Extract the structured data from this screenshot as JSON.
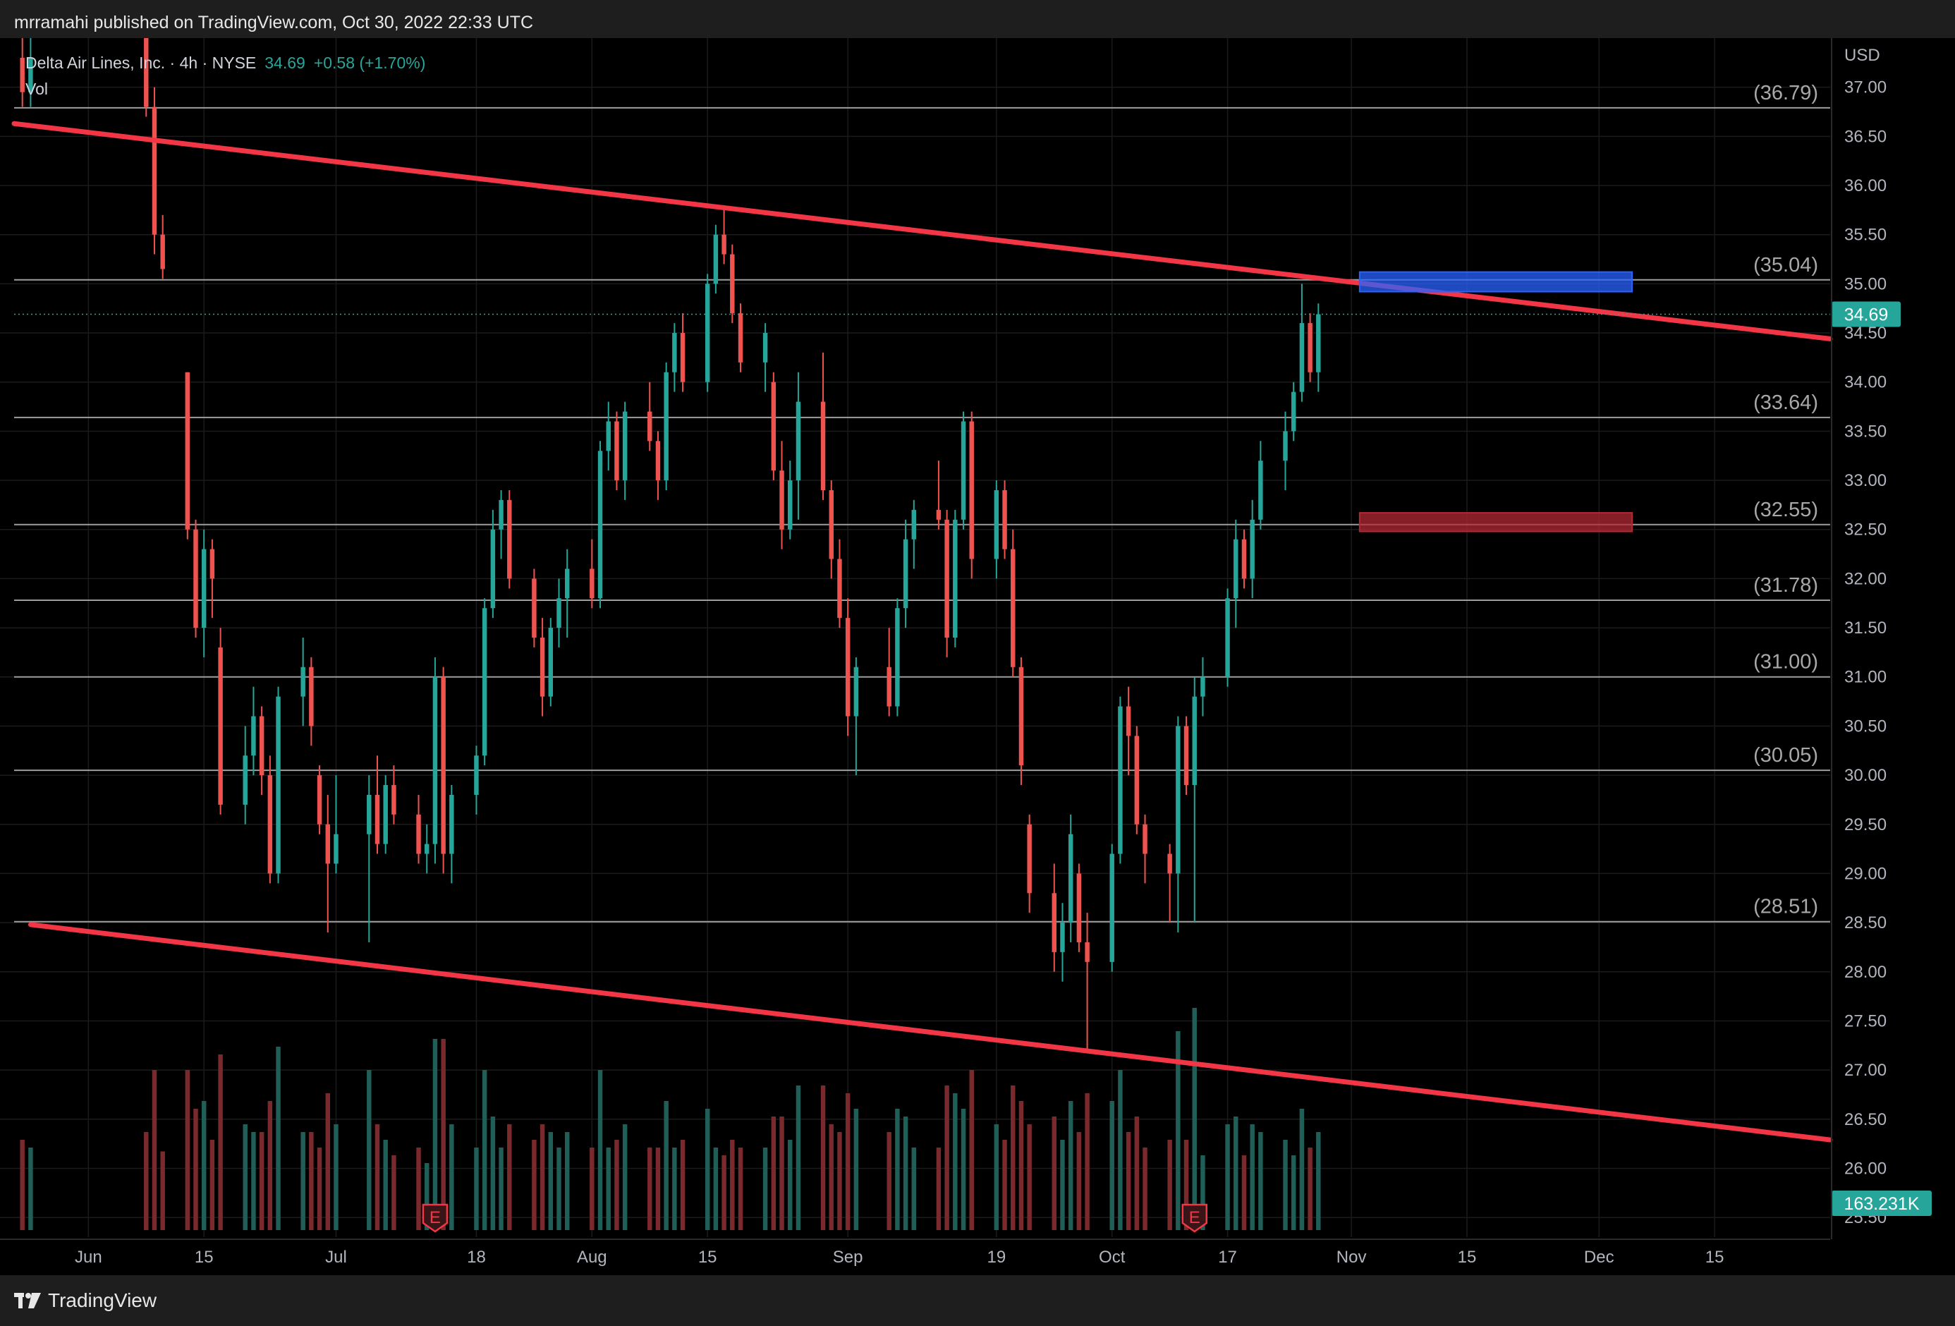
{
  "header": {
    "publish_line": "mrramahi published on TradingView.com, Oct 30, 2022 22:33 UTC"
  },
  "legend": {
    "symbol": "Delta Air Lines, Inc. · 4h · NYSE",
    "last": "34.69",
    "change": "+0.58 (+1.70%)",
    "volume_label": "Vol"
  },
  "footer": {
    "brand": "TradingView"
  },
  "colors": {
    "background": "#000000",
    "up": "#26a69a",
    "down": "#ef5350",
    "trendline": "#f23645",
    "level_line": "#9e9e9e",
    "blue_zone": "#2962ff",
    "red_zone": "#b22833"
  },
  "chart_data": {
    "type": "candlestick",
    "currency_label": "USD",
    "ylim": [
      25.3,
      37.5
    ],
    "y_ticks": [
      "37.00",
      "36.50",
      "36.00",
      "35.50",
      "35.00",
      "34.50",
      "34.00",
      "33.50",
      "33.00",
      "32.50",
      "32.00",
      "31.50",
      "31.00",
      "30.50",
      "30.00",
      "29.50",
      "29.00",
      "28.50",
      "28.00",
      "27.50",
      "27.00",
      "26.50",
      "26.00",
      "25.50"
    ],
    "x_ticks": [
      {
        "label": "Jun",
        "date": "2022-06-01"
      },
      {
        "label": "15",
        "date": "2022-06-15"
      },
      {
        "label": "Jul",
        "date": "2022-07-01"
      },
      {
        "label": "18",
        "date": "2022-07-18"
      },
      {
        "label": "Aug",
        "date": "2022-08-01"
      },
      {
        "label": "15",
        "date": "2022-08-15"
      },
      {
        "label": "Sep",
        "date": "2022-09-01"
      },
      {
        "label": "19",
        "date": "2022-09-19"
      },
      {
        "label": "Oct",
        "date": "2022-10-03"
      },
      {
        "label": "17",
        "date": "2022-10-17"
      },
      {
        "label": "Nov",
        "date": "2022-11-01"
      },
      {
        "label": "15",
        "date": "2022-11-15"
      },
      {
        "label": "Dec",
        "date": "2022-12-01"
      },
      {
        "label": "15",
        "date": "2022-12-15"
      }
    ],
    "x_range": [
      "2022-05-23",
      "2022-12-29"
    ],
    "horizontal_levels": [
      {
        "label": "(36.79)",
        "value": 36.79
      },
      {
        "label": "(35.04)",
        "value": 35.04
      },
      {
        "label": "(33.64)",
        "value": 33.64
      },
      {
        "label": "(32.55)",
        "value": 32.55
      },
      {
        "label": "(31.78)",
        "value": 31.78
      },
      {
        "label": "(31.00)",
        "value": 31.0
      },
      {
        "label": "(30.05)",
        "value": 30.05
      },
      {
        "label": "(28.51)",
        "value": 28.51
      }
    ],
    "trendlines": [
      {
        "from": {
          "date": "2022-05-23",
          "value": 36.63
        },
        "to": {
          "date": "2022-12-29",
          "value": 34.44
        }
      },
      {
        "from": {
          "date": "2022-05-25",
          "value": 28.48
        },
        "to": {
          "date": "2022-12-29",
          "value": 26.29
        }
      }
    ],
    "zones": [
      {
        "color": "blue",
        "from": "2022-11-02",
        "to": "2022-12-05",
        "low": 34.92,
        "high": 35.12
      },
      {
        "color": "red",
        "from": "2022-11-02",
        "to": "2022-12-05",
        "low": 32.48,
        "high": 32.67
      }
    ],
    "last_price": {
      "value": 34.69,
      "label": "34.69"
    },
    "volume_badge": "163.231K",
    "earnings_markers": [
      {
        "date": "2022-07-13",
        "label": "E"
      },
      {
        "date": "2022-10-13",
        "label": "E"
      }
    ],
    "candles": [
      {
        "d": "2022-05-24",
        "o": 37.3,
        "h": 37.6,
        "l": 36.8,
        "c": 36.95
      },
      {
        "d": "2022-05-25",
        "o": 36.95,
        "h": 37.5,
        "l": 36.8,
        "c": 37.3
      },
      {
        "d": "2022-06-08",
        "o": 37.5,
        "h": 37.6,
        "l": 36.7,
        "c": 36.8
      },
      {
        "d": "2022-06-09",
        "o": 36.8,
        "h": 37.0,
        "l": 35.3,
        "c": 35.5
      },
      {
        "d": "2022-06-10",
        "o": 35.5,
        "h": 35.7,
        "l": 35.05,
        "c": 35.15
      },
      {
        "d": "2022-06-13",
        "o": 34.1,
        "h": 34.1,
        "l": 32.4,
        "c": 32.5
      },
      {
        "d": "2022-06-14",
        "o": 32.5,
        "h": 32.6,
        "l": 31.4,
        "c": 31.5
      },
      {
        "d": "2022-06-15",
        "o": 31.5,
        "h": 32.5,
        "l": 31.2,
        "c": 32.3
      },
      {
        "d": "2022-06-16",
        "o": 32.3,
        "h": 32.4,
        "l": 31.6,
        "c": 32.0
      },
      {
        "d": "2022-06-17",
        "o": 31.3,
        "h": 31.5,
        "l": 29.6,
        "c": 29.7
      },
      {
        "d": "2022-06-20",
        "o": 29.7,
        "h": 30.5,
        "l": 29.5,
        "c": 30.2
      },
      {
        "d": "2022-06-21",
        "o": 30.2,
        "h": 30.9,
        "l": 30.0,
        "c": 30.6
      },
      {
        "d": "2022-06-22",
        "o": 30.6,
        "h": 30.7,
        "l": 29.8,
        "c": 30.0
      },
      {
        "d": "2022-06-23",
        "o": 30.0,
        "h": 30.2,
        "l": 28.9,
        "c": 29.0
      },
      {
        "d": "2022-06-24",
        "o": 29.0,
        "h": 30.9,
        "l": 28.9,
        "c": 30.8
      },
      {
        "d": "2022-06-27",
        "o": 30.8,
        "h": 31.4,
        "l": 30.5,
        "c": 31.1
      },
      {
        "d": "2022-06-28",
        "o": 31.1,
        "h": 31.2,
        "l": 30.3,
        "c": 30.5
      },
      {
        "d": "2022-06-29",
        "o": 30.0,
        "h": 30.1,
        "l": 29.4,
        "c": 29.5
      },
      {
        "d": "2022-06-30",
        "o": 29.5,
        "h": 29.8,
        "l": 28.4,
        "c": 29.1
      },
      {
        "d": "2022-07-01",
        "o": 29.1,
        "h": 30.0,
        "l": 29.0,
        "c": 29.4
      },
      {
        "d": "2022-07-05",
        "o": 29.4,
        "h": 30.0,
        "l": 28.3,
        "c": 29.8
      },
      {
        "d": "2022-07-06",
        "o": 29.8,
        "h": 30.2,
        "l": 29.2,
        "c": 29.3
      },
      {
        "d": "2022-07-07",
        "o": 29.3,
        "h": 30.0,
        "l": 29.2,
        "c": 29.9
      },
      {
        "d": "2022-07-08",
        "o": 29.9,
        "h": 30.1,
        "l": 29.5,
        "c": 29.6
      },
      {
        "d": "2022-07-11",
        "o": 29.6,
        "h": 29.8,
        "l": 29.1,
        "c": 29.2
      },
      {
        "d": "2022-07-12",
        "o": 29.2,
        "h": 29.5,
        "l": 29.0,
        "c": 29.3
      },
      {
        "d": "2022-07-13",
        "o": 29.3,
        "h": 31.2,
        "l": 29.1,
        "c": 31.0
      },
      {
        "d": "2022-07-14",
        "o": 31.0,
        "h": 31.1,
        "l": 29.0,
        "c": 29.2
      },
      {
        "d": "2022-07-15",
        "o": 29.2,
        "h": 29.9,
        "l": 28.9,
        "c": 29.8
      },
      {
        "d": "2022-07-18",
        "o": 29.8,
        "h": 30.3,
        "l": 29.6,
        "c": 30.2
      },
      {
        "d": "2022-07-19",
        "o": 30.2,
        "h": 31.8,
        "l": 30.1,
        "c": 31.7
      },
      {
        "d": "2022-07-20",
        "o": 31.7,
        "h": 32.7,
        "l": 31.6,
        "c": 32.5
      },
      {
        "d": "2022-07-21",
        "o": 32.5,
        "h": 32.9,
        "l": 32.2,
        "c": 32.8
      },
      {
        "d": "2022-07-22",
        "o": 32.8,
        "h": 32.9,
        "l": 31.9,
        "c": 32.0
      },
      {
        "d": "2022-07-25",
        "o": 32.0,
        "h": 32.1,
        "l": 31.3,
        "c": 31.4
      },
      {
        "d": "2022-07-26",
        "o": 31.4,
        "h": 31.6,
        "l": 30.6,
        "c": 30.8
      },
      {
        "d": "2022-07-27",
        "o": 30.8,
        "h": 31.6,
        "l": 30.7,
        "c": 31.5
      },
      {
        "d": "2022-07-28",
        "o": 31.5,
        "h": 32.0,
        "l": 31.3,
        "c": 31.8
      },
      {
        "d": "2022-07-29",
        "o": 31.8,
        "h": 32.3,
        "l": 31.4,
        "c": 32.1
      },
      {
        "d": "2022-08-01",
        "o": 32.1,
        "h": 32.4,
        "l": 31.7,
        "c": 31.8
      },
      {
        "d": "2022-08-02",
        "o": 31.8,
        "h": 33.4,
        "l": 31.7,
        "c": 33.3
      },
      {
        "d": "2022-08-03",
        "o": 33.3,
        "h": 33.8,
        "l": 33.1,
        "c": 33.6
      },
      {
        "d": "2022-08-04",
        "o": 33.6,
        "h": 33.7,
        "l": 32.9,
        "c": 33.0
      },
      {
        "d": "2022-08-05",
        "o": 33.0,
        "h": 33.8,
        "l": 32.8,
        "c": 33.7
      },
      {
        "d": "2022-08-08",
        "o": 33.7,
        "h": 34.0,
        "l": 33.3,
        "c": 33.4
      },
      {
        "d": "2022-08-09",
        "o": 33.4,
        "h": 33.5,
        "l": 32.8,
        "c": 33.0
      },
      {
        "d": "2022-08-10",
        "o": 33.0,
        "h": 34.2,
        "l": 32.9,
        "c": 34.1
      },
      {
        "d": "2022-08-11",
        "o": 34.1,
        "h": 34.6,
        "l": 33.9,
        "c": 34.5
      },
      {
        "d": "2022-08-12",
        "o": 34.5,
        "h": 34.7,
        "l": 33.9,
        "c": 34.0
      },
      {
        "d": "2022-08-15",
        "o": 34.0,
        "h": 35.1,
        "l": 33.9,
        "c": 35.0
      },
      {
        "d": "2022-08-16",
        "o": 35.0,
        "h": 35.6,
        "l": 34.9,
        "c": 35.5
      },
      {
        "d": "2022-08-17",
        "o": 35.5,
        "h": 35.8,
        "l": 35.2,
        "c": 35.3
      },
      {
        "d": "2022-08-18",
        "o": 35.3,
        "h": 35.4,
        "l": 34.6,
        "c": 34.7
      },
      {
        "d": "2022-08-19",
        "o": 34.7,
        "h": 34.8,
        "l": 34.1,
        "c": 34.2
      },
      {
        "d": "2022-08-22",
        "o": 34.2,
        "h": 34.6,
        "l": 33.9,
        "c": 34.5
      },
      {
        "d": "2022-08-23",
        "o": 34.0,
        "h": 34.1,
        "l": 33.0,
        "c": 33.1
      },
      {
        "d": "2022-08-24",
        "o": 33.1,
        "h": 33.4,
        "l": 32.3,
        "c": 32.5
      },
      {
        "d": "2022-08-25",
        "o": 32.5,
        "h": 33.2,
        "l": 32.4,
        "c": 33.0
      },
      {
        "d": "2022-08-26",
        "o": 33.0,
        "h": 34.1,
        "l": 32.6,
        "c": 33.8
      },
      {
        "d": "2022-08-29",
        "o": 33.8,
        "h": 34.3,
        "l": 32.8,
        "c": 32.9
      },
      {
        "d": "2022-08-30",
        "o": 32.9,
        "h": 33.0,
        "l": 32.0,
        "c": 32.2
      },
      {
        "d": "2022-08-31",
        "o": 32.2,
        "h": 32.4,
        "l": 31.5,
        "c": 31.6
      },
      {
        "d": "2022-09-01",
        "o": 31.6,
        "h": 31.8,
        "l": 30.4,
        "c": 30.6
      },
      {
        "d": "2022-09-02",
        "o": 30.6,
        "h": 31.2,
        "l": 30.0,
        "c": 31.1
      },
      {
        "d": "2022-09-06",
        "o": 31.1,
        "h": 31.5,
        "l": 30.6,
        "c": 30.7
      },
      {
        "d": "2022-09-07",
        "o": 30.7,
        "h": 31.8,
        "l": 30.6,
        "c": 31.7
      },
      {
        "d": "2022-09-08",
        "o": 31.7,
        "h": 32.6,
        "l": 31.5,
        "c": 32.4
      },
      {
        "d": "2022-09-09",
        "o": 32.4,
        "h": 32.8,
        "l": 32.1,
        "c": 32.7
      },
      {
        "d": "2022-09-12",
        "o": 32.7,
        "h": 33.2,
        "l": 32.5,
        "c": 32.6
      },
      {
        "d": "2022-09-13",
        "o": 32.6,
        "h": 32.7,
        "l": 31.2,
        "c": 31.4
      },
      {
        "d": "2022-09-14",
        "o": 31.4,
        "h": 32.7,
        "l": 31.3,
        "c": 32.6
      },
      {
        "d": "2022-09-15",
        "o": 32.6,
        "h": 33.7,
        "l": 32.5,
        "c": 33.6
      },
      {
        "d": "2022-09-16",
        "o": 33.6,
        "h": 33.7,
        "l": 32.0,
        "c": 32.2
      },
      {
        "d": "2022-09-19",
        "o": 32.2,
        "h": 33.0,
        "l": 32.0,
        "c": 32.9
      },
      {
        "d": "2022-09-20",
        "o": 32.9,
        "h": 33.0,
        "l": 32.2,
        "c": 32.3
      },
      {
        "d": "2022-09-21",
        "o": 32.3,
        "h": 32.5,
        "l": 31.0,
        "c": 31.1
      },
      {
        "d": "2022-09-22",
        "o": 31.1,
        "h": 31.2,
        "l": 29.9,
        "c": 30.1
      },
      {
        "d": "2022-09-23",
        "o": 29.5,
        "h": 29.6,
        "l": 28.6,
        "c": 28.8
      },
      {
        "d": "2022-09-26",
        "o": 28.8,
        "h": 29.1,
        "l": 28.0,
        "c": 28.2
      },
      {
        "d": "2022-09-27",
        "o": 28.2,
        "h": 28.7,
        "l": 27.9,
        "c": 28.5
      },
      {
        "d": "2022-09-28",
        "o": 28.5,
        "h": 29.6,
        "l": 28.3,
        "c": 29.4
      },
      {
        "d": "2022-09-29",
        "o": 29.0,
        "h": 29.1,
        "l": 28.2,
        "c": 28.3
      },
      {
        "d": "2022-09-30",
        "o": 28.3,
        "h": 28.6,
        "l": 27.2,
        "c": 28.1
      },
      {
        "d": "2022-10-03",
        "o": 28.1,
        "h": 29.3,
        "l": 28.0,
        "c": 29.2
      },
      {
        "d": "2022-10-04",
        "o": 29.2,
        "h": 30.8,
        "l": 29.1,
        "c": 30.7
      },
      {
        "d": "2022-10-05",
        "o": 30.7,
        "h": 30.9,
        "l": 30.0,
        "c": 30.4
      },
      {
        "d": "2022-10-06",
        "o": 30.4,
        "h": 30.5,
        "l": 29.4,
        "c": 29.5
      },
      {
        "d": "2022-10-07",
        "o": 29.5,
        "h": 29.6,
        "l": 28.9,
        "c": 29.2
      },
      {
        "d": "2022-10-10",
        "o": 29.2,
        "h": 29.3,
        "l": 28.5,
        "c": 29.0
      },
      {
        "d": "2022-10-11",
        "o": 29.0,
        "h": 30.6,
        "l": 28.4,
        "c": 30.5
      },
      {
        "d": "2022-10-12",
        "o": 30.5,
        "h": 30.6,
        "l": 29.8,
        "c": 29.9
      },
      {
        "d": "2022-10-13",
        "o": 29.9,
        "h": 31.0,
        "l": 28.5,
        "c": 30.8
      },
      {
        "d": "2022-10-14",
        "o": 30.8,
        "h": 31.2,
        "l": 30.6,
        "c": 31.0
      },
      {
        "d": "2022-10-17",
        "o": 31.0,
        "h": 31.9,
        "l": 30.9,
        "c": 31.8
      },
      {
        "d": "2022-10-18",
        "o": 31.8,
        "h": 32.6,
        "l": 31.5,
        "c": 32.4
      },
      {
        "d": "2022-10-19",
        "o": 32.4,
        "h": 32.5,
        "l": 31.9,
        "c": 32.0
      },
      {
        "d": "2022-10-20",
        "o": 32.0,
        "h": 32.8,
        "l": 31.8,
        "c": 32.6
      },
      {
        "d": "2022-10-21",
        "o": 32.6,
        "h": 33.4,
        "l": 32.5,
        "c": 33.2
      },
      {
        "d": "2022-10-24",
        "o": 33.2,
        "h": 33.7,
        "l": 32.9,
        "c": 33.5
      },
      {
        "d": "2022-10-25",
        "o": 33.5,
        "h": 34.0,
        "l": 33.4,
        "c": 33.9
      },
      {
        "d": "2022-10-26",
        "o": 33.9,
        "h": 35.0,
        "l": 33.8,
        "c": 34.6
      },
      {
        "d": "2022-10-27",
        "o": 34.6,
        "h": 34.7,
        "l": 34.0,
        "c": 34.1
      },
      {
        "d": "2022-10-28",
        "o": 34.1,
        "h": 34.8,
        "l": 33.9,
        "c": 34.69
      }
    ]
  }
}
